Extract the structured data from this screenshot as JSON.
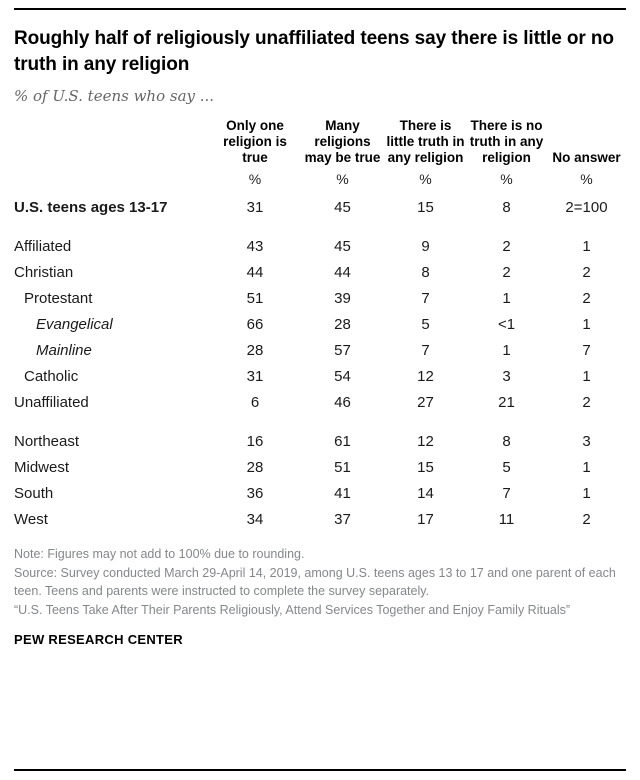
{
  "colors": {
    "rule": "#000000",
    "title_text": "#000000",
    "subtitle_gray": "#666666",
    "body_text": "#1a1a1a",
    "note_gray": "#84878b"
  },
  "chart_data": {
    "type": "table",
    "title": "Roughly half of religiously unaffiliated teens say there is little or no truth in any religion",
    "subtitle": "% of U.S. teens who say ...",
    "columns": [
      "Only one religion is true",
      "Many religions may be true",
      "There is little truth in any religion",
      "There is no truth in any religion",
      "No answer"
    ],
    "units": [
      "%",
      "%",
      "%",
      "%",
      "%"
    ],
    "rows": [
      {
        "label": "U.S. teens ages 13-17",
        "bold": true,
        "italic": false,
        "indent": 0,
        "gap_after": true,
        "values": [
          "31",
          "45",
          "15",
          "8",
          "2=100"
        ]
      },
      {
        "label": "Affiliated",
        "bold": false,
        "italic": false,
        "indent": 0,
        "gap_after": false,
        "values": [
          "43",
          "45",
          "9",
          "2",
          "1"
        ]
      },
      {
        "label": "Christian",
        "bold": false,
        "italic": false,
        "indent": 0,
        "gap_after": false,
        "values": [
          "44",
          "44",
          "8",
          "2",
          "2"
        ]
      },
      {
        "label": "Protestant",
        "bold": false,
        "italic": false,
        "indent": 1,
        "gap_after": false,
        "values": [
          "51",
          "39",
          "7",
          "1",
          "2"
        ]
      },
      {
        "label": "Evangelical",
        "bold": false,
        "italic": true,
        "indent": 2,
        "gap_after": false,
        "values": [
          "66",
          "28",
          "5",
          "<1",
          "1"
        ]
      },
      {
        "label": "Mainline",
        "bold": false,
        "italic": true,
        "indent": 2,
        "gap_after": false,
        "values": [
          "28",
          "57",
          "7",
          "1",
          "7"
        ]
      },
      {
        "label": "Catholic",
        "bold": false,
        "italic": false,
        "indent": 1,
        "gap_after": false,
        "values": [
          "31",
          "54",
          "12",
          "3",
          "1"
        ]
      },
      {
        "label": "Unaffiliated",
        "bold": false,
        "italic": false,
        "indent": 0,
        "gap_after": true,
        "values": [
          "6",
          "46",
          "27",
          "21",
          "2"
        ]
      },
      {
        "label": "Northeast",
        "bold": false,
        "italic": false,
        "indent": 0,
        "gap_after": false,
        "values": [
          "16",
          "61",
          "12",
          "8",
          "3"
        ]
      },
      {
        "label": "Midwest",
        "bold": false,
        "italic": false,
        "indent": 0,
        "gap_after": false,
        "values": [
          "28",
          "51",
          "15",
          "5",
          "1"
        ]
      },
      {
        "label": "South",
        "bold": false,
        "italic": false,
        "indent": 0,
        "gap_after": false,
        "values": [
          "36",
          "41",
          "14",
          "7",
          "1"
        ]
      },
      {
        "label": "West",
        "bold": false,
        "italic": false,
        "indent": 0,
        "gap_after": false,
        "values": [
          "34",
          "37",
          "17",
          "11",
          "2"
        ]
      }
    ]
  },
  "footer": {
    "note": "Note: Figures may not add to 100% due to rounding.",
    "source": "Source: Survey conducted March 29-April 14, 2019, among U.S. teens ages 13 to 17 and one parent of each teen. Teens and parents were instructed to complete the survey separately.",
    "report": "“U.S. Teens Take After Their Parents Religiously, Attend Services Together and Enjoy Family Rituals”",
    "brand": "PEW RESEARCH CENTER"
  }
}
